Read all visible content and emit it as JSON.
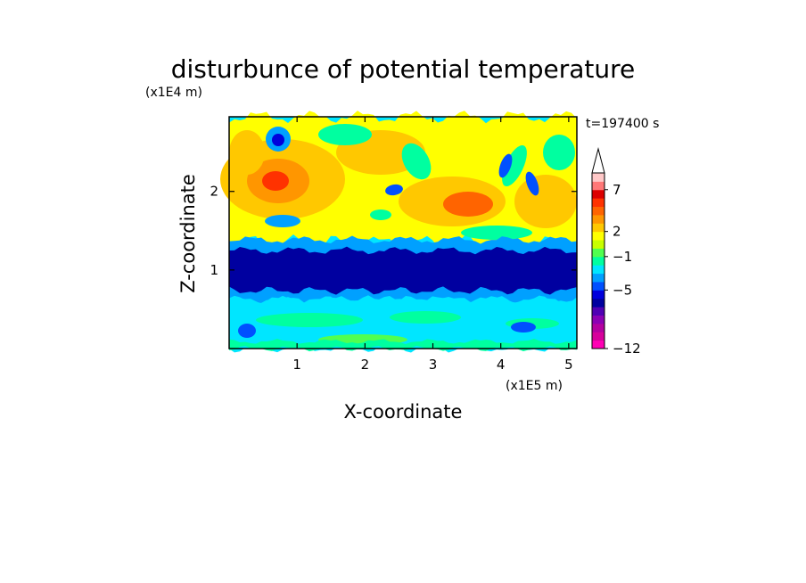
{
  "chart_data": {
    "type": "heatmap",
    "title": "disturbunce of potential temperature",
    "xlabel": "X-coordinate",
    "ylabel": "Z-coordinate",
    "x_unit": "(x1E5 m)",
    "y_unit": "(x1E4 m)",
    "time_label": "t=197400 s",
    "xlim": [
      0,
      5.12
    ],
    "ylim": [
      0,
      2.95
    ],
    "x_ticks": [
      {
        "value": 1,
        "label": "1"
      },
      {
        "value": 2,
        "label": "2"
      },
      {
        "value": 3,
        "label": "3"
      },
      {
        "value": 4,
        "label": "4"
      },
      {
        "value": 5,
        "label": "5"
      }
    ],
    "y_ticks": [
      {
        "value": 1,
        "label": "1"
      },
      {
        "value": 2,
        "label": "2"
      }
    ],
    "colorbar": {
      "levels": [
        -12,
        -11,
        -10,
        -9,
        -8,
        -7,
        -6,
        -5,
        -4,
        -3,
        -2,
        -1,
        0,
        1,
        2,
        3,
        4,
        5,
        6,
        7,
        8,
        9,
        10
      ],
      "colors": [
        "#ff00b4",
        "#d7009b",
        "#b400a0",
        "#8c00b4",
        "#5000b4",
        "#0000a0",
        "#0000dc",
        "#0050ff",
        "#00a0ff",
        "#00e6ff",
        "#00ffa0",
        "#50ff50",
        "#c8ff00",
        "#ffff00",
        "#ffc800",
        "#ff9600",
        "#ff6400",
        "#ff3200",
        "#dc0000",
        "#ff7878",
        "#ffc8c8"
      ],
      "labels": [
        {
          "value": -12,
          "label": "−12"
        },
        {
          "value": -5,
          "label": "−5"
        },
        {
          "value": -1,
          "label": "−1"
        },
        {
          "value": 2,
          "label": "2"
        },
        {
          "value": 7,
          "label": "7"
        }
      ],
      "extend_max": true
    },
    "grid": false
  }
}
